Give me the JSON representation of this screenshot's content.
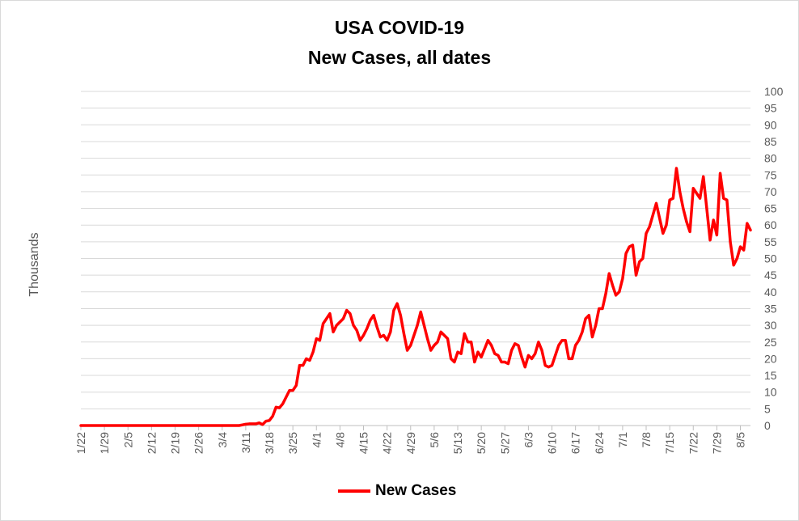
{
  "chart_data": {
    "type": "line",
    "title": "USA COVID-19",
    "subtitle": "New Cases, all dates",
    "ylabel": "Thousands",
    "xlabel": "",
    "ylim": [
      0,
      100
    ],
    "yticks": [
      0,
      5,
      10,
      15,
      20,
      25,
      30,
      35,
      40,
      45,
      50,
      55,
      60,
      65,
      70,
      75,
      80,
      85,
      90,
      95,
      100
    ],
    "yaxis_position": "right",
    "xtick_labels": [
      "1/22",
      "1/29",
      "2/5",
      "2/12",
      "2/19",
      "2/26",
      "3/4",
      "3/11",
      "3/18",
      "3/25",
      "4/1",
      "4/8",
      "4/15",
      "4/22",
      "4/29",
      "5/6",
      "5/13",
      "5/20",
      "5/27",
      "6/3",
      "6/10",
      "6/17",
      "6/24",
      "7/1",
      "7/8",
      "7/15",
      "7/22",
      "7/29",
      "8/5"
    ],
    "grid": true,
    "legend_position": "bottom",
    "color": "#ff0000",
    "series": [
      {
        "name": "New Cases",
        "values": [
          0,
          0,
          0,
          0,
          0,
          0,
          0,
          0,
          0,
          0,
          0,
          0,
          0,
          0,
          0,
          0,
          0,
          0,
          0,
          0,
          0,
          0,
          0,
          0,
          0,
          0,
          0,
          0,
          0,
          0,
          0,
          0,
          0,
          0,
          0,
          0,
          0,
          0,
          0,
          0,
          0,
          0,
          0,
          0,
          0,
          0,
          0,
          0,
          0.2,
          0.4,
          0.5,
          0.5,
          0.5,
          0.8,
          0.3,
          1.3,
          1.5,
          2.8,
          5.5,
          5.3,
          6.5,
          8.5,
          10.5,
          10.5,
          12,
          18,
          18,
          20,
          19.5,
          22,
          26,
          25.5,
          30.5,
          32,
          33.5,
          28,
          30,
          31,
          32,
          34.5,
          33.5,
          30,
          28.5,
          25.5,
          27,
          29,
          31.5,
          33,
          29.5,
          26.5,
          27,
          25.5,
          28,
          34.5,
          36.5,
          33,
          27.5,
          22.5,
          24,
          27,
          30,
          34,
          30,
          26,
          22.5,
          24,
          25,
          28,
          27,
          26,
          20,
          19,
          22,
          21.5,
          27.5,
          25,
          25,
          19,
          22,
          20.5,
          23,
          25.5,
          24,
          21.5,
          21,
          19,
          19,
          18.5,
          22.5,
          24.5,
          24,
          20.5,
          17.5,
          21,
          20,
          21.5,
          25,
          22.5,
          18,
          17.5,
          18,
          21,
          24,
          25.5,
          25.5,
          20,
          20,
          24,
          25.5,
          28,
          32,
          33,
          26.5,
          30,
          35,
          35,
          39.5,
          45.5,
          42,
          39,
          40,
          44,
          51.5,
          53.5,
          54,
          45,
          49,
          50,
          57.5,
          59.5,
          63,
          66.5,
          62,
          57.5,
          60,
          67.5,
          68,
          77,
          70,
          65,
          61,
          58,
          71,
          69.5,
          68,
          74.5,
          65,
          55.5,
          61.5,
          57,
          75.5,
          68,
          67.5,
          55,
          48,
          50,
          53.5,
          52.5,
          60.5,
          58.5
        ]
      }
    ]
  }
}
